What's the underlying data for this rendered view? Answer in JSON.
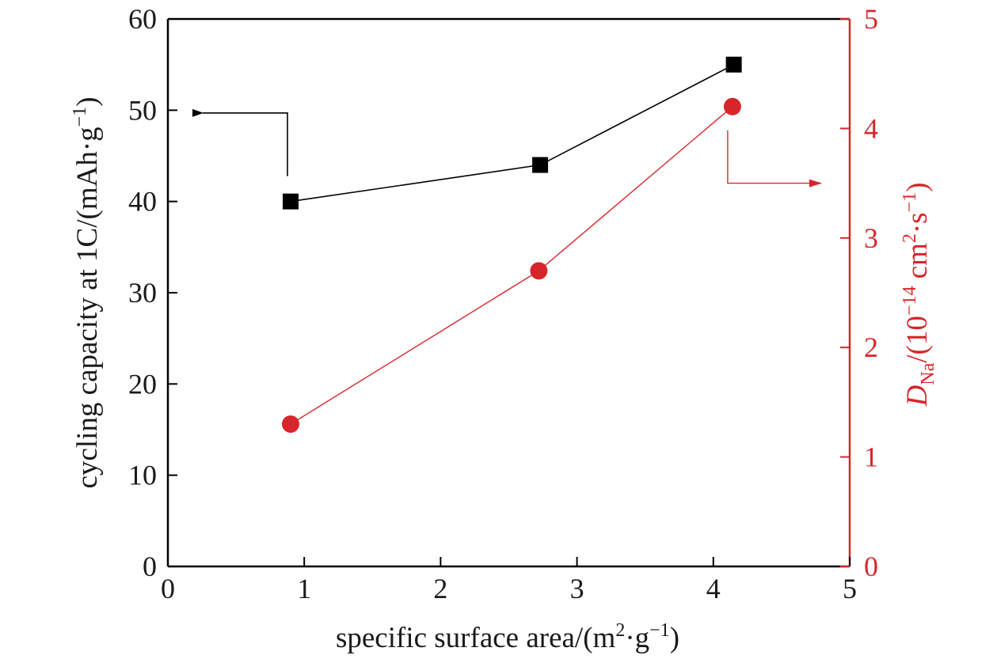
{
  "chart_data": {
    "type": "line",
    "xlabel": {
      "prefix": "specific surface area/(m",
      "sup1": "2",
      "mid": "·g",
      "sup2": "−1",
      "suffix": ")"
    },
    "ylabel_left": {
      "prefix": "cycling capacity at 1C/(mAh·g",
      "sup": "−1",
      "suffix": ")"
    },
    "ylabel_right": {
      "symbol": "D",
      "sub": "Na",
      "prefix": "/(10",
      "sup1": "−14",
      "mid": " cm",
      "sup2": "2",
      "mid2": "·s",
      "sup3": "−1",
      "suffix": ")"
    },
    "xlim": [
      0,
      5
    ],
    "ylim_left": [
      0,
      60
    ],
    "ylim_right": [
      0,
      5
    ],
    "x_ticks": [
      "0",
      "1",
      "2",
      "3",
      "4",
      "5"
    ],
    "y_left_ticks": [
      "0",
      "10",
      "20",
      "30",
      "40",
      "50",
      "60"
    ],
    "y_right_ticks": [
      "0",
      "1",
      "2",
      "3",
      "4",
      "5"
    ],
    "grid": false,
    "colors": {
      "left_series": "#000000",
      "right_series": "#d7262b"
    },
    "series": [
      {
        "axis": "left",
        "marker": "square",
        "x": [
          0.9,
          2.73,
          4.15
        ],
        "y": [
          40,
          44,
          55
        ]
      },
      {
        "axis": "right",
        "marker": "circle",
        "x": [
          0.9,
          2.72,
          4.14
        ],
        "y": [
          1.3,
          2.7,
          4.2
        ]
      }
    ],
    "annotations": [
      {
        "type": "arrow",
        "points_to": "left-axis",
        "series": 0
      },
      {
        "type": "arrow",
        "points_to": "right-axis",
        "series": 1
      }
    ]
  }
}
